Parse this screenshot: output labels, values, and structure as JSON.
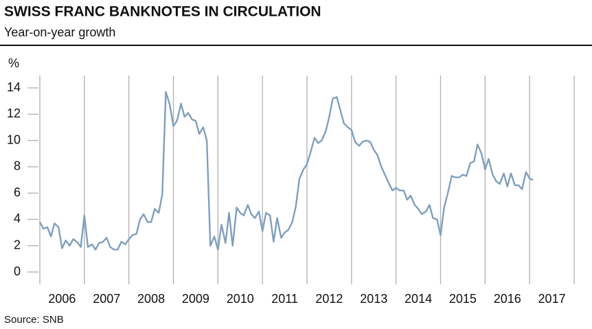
{
  "chart_data": {
    "type": "line",
    "title": "SWISS FRANC BANKNOTES IN CIRCULATION",
    "subtitle": "Year-on-year growth",
    "y_unit": "%",
    "source": "Source: SNB",
    "color": "#7f9fbe",
    "grid": true,
    "categories": [
      "2006",
      "2007",
      "2008",
      "2009",
      "2010",
      "2011",
      "2012",
      "2013",
      "2014",
      "2015",
      "2016",
      "2017"
    ],
    "xlim": [
      2006,
      2018
    ],
    "xticks": [
      2006,
      2007,
      2008,
      2009,
      2010,
      2011,
      2012,
      2013,
      2014,
      2015,
      2016,
      2017,
      2018
    ],
    "ylim": [
      0,
      14
    ],
    "yticks": [
      0,
      2,
      4,
      6,
      8,
      10,
      12,
      14
    ],
    "x": [
      2006,
      2006.08,
      2006.17,
      2006.25,
      2006.33,
      2006.42,
      2006.5,
      2006.58,
      2006.67,
      2006.75,
      2006.83,
      2006.92,
      2007,
      2007.08,
      2007.17,
      2007.25,
      2007.33,
      2007.42,
      2007.5,
      2007.58,
      2007.67,
      2007.75,
      2007.83,
      2007.92,
      2008,
      2008.08,
      2008.17,
      2008.25,
      2008.33,
      2008.42,
      2008.5,
      2008.58,
      2008.67,
      2008.75,
      2008.83,
      2008.92,
      2009,
      2009.08,
      2009.17,
      2009.25,
      2009.33,
      2009.42,
      2009.5,
      2009.58,
      2009.67,
      2009.75,
      2009.83,
      2009.92,
      2010,
      2010.08,
      2010.17,
      2010.25,
      2010.33,
      2010.42,
      2010.5,
      2010.58,
      2010.67,
      2010.75,
      2010.83,
      2010.92,
      2011,
      2011.08,
      2011.17,
      2011.25,
      2011.33,
      2011.42,
      2011.5,
      2011.58,
      2011.67,
      2011.75,
      2011.83,
      2011.92,
      2012,
      2012.08,
      2012.17,
      2012.25,
      2012.33,
      2012.42,
      2012.5,
      2012.58,
      2012.67,
      2012.75,
      2012.83,
      2012.92,
      2013,
      2013.08,
      2013.17,
      2013.25,
      2013.33,
      2013.42,
      2013.5,
      2013.58,
      2013.67,
      2013.75,
      2013.83,
      2013.92,
      2014,
      2014.08,
      2014.17,
      2014.25,
      2014.33,
      2014.42,
      2014.5,
      2014.58,
      2014.67,
      2014.75,
      2014.83,
      2014.92,
      2015,
      2015.08,
      2015.17,
      2015.25,
      2015.33,
      2015.42,
      2015.5,
      2015.58,
      2015.67,
      2015.75,
      2015.83,
      2015.92,
      2016,
      2016.08,
      2016.17,
      2016.25,
      2016.33,
      2016.42,
      2016.5,
      2016.58,
      2016.67,
      2016.75,
      2016.83,
      2016.92,
      2017,
      2017.08
    ],
    "values": [
      3.8,
      3.3,
      3.4,
      2.7,
      3.7,
      3.4,
      1.8,
      2.4,
      2.0,
      2.5,
      2.3,
      1.9,
      4.3,
      1.9,
      2.1,
      1.7,
      2.2,
      2.3,
      2.6,
      1.9,
      1.7,
      1.7,
      2.3,
      2.1,
      2.5,
      2.8,
      2.9,
      4.0,
      4.4,
      3.8,
      3.8,
      4.8,
      4.5,
      5.9,
      13.7,
      12.7,
      11.1,
      11.5,
      12.8,
      11.8,
      12.1,
      11.6,
      11.5,
      10.5,
      11.0,
      10.0,
      2.0,
      2.7,
      1.7,
      3.6,
      2.2,
      4.5,
      2.0,
      4.9,
      4.5,
      4.3,
      5.1,
      4.4,
      4.1,
      4.6,
      3.1,
      4.5,
      4.3,
      2.3,
      4.1,
      2.6,
      3.0,
      3.2,
      3.8,
      5.0,
      7.1,
      7.8,
      8.2,
      9.1,
      10.2,
      9.8,
      10.0,
      10.7,
      11.8,
      13.2,
      13.3,
      12.3,
      11.3,
      11.0,
      10.8,
      9.9,
      9.6,
      9.9,
      10.0,
      9.9,
      9.3,
      8.9,
      8.0,
      7.4,
      6.8,
      6.2,
      6.4,
      6.2,
      6.2,
      5.5,
      5.8,
      5.1,
      4.8,
      4.4,
      4.6,
      5.1,
      4.1,
      4.0,
      2.8,
      4.9,
      6.1,
      7.3,
      7.2,
      7.2,
      7.4,
      7.3,
      8.3,
      8.4,
      9.7,
      9.0,
      7.8,
      8.6,
      7.4,
      6.9,
      6.7,
      7.5,
      6.5,
      7.5,
      6.6,
      6.6,
      6.3,
      7.6,
      7.1,
      7.0
    ]
  }
}
